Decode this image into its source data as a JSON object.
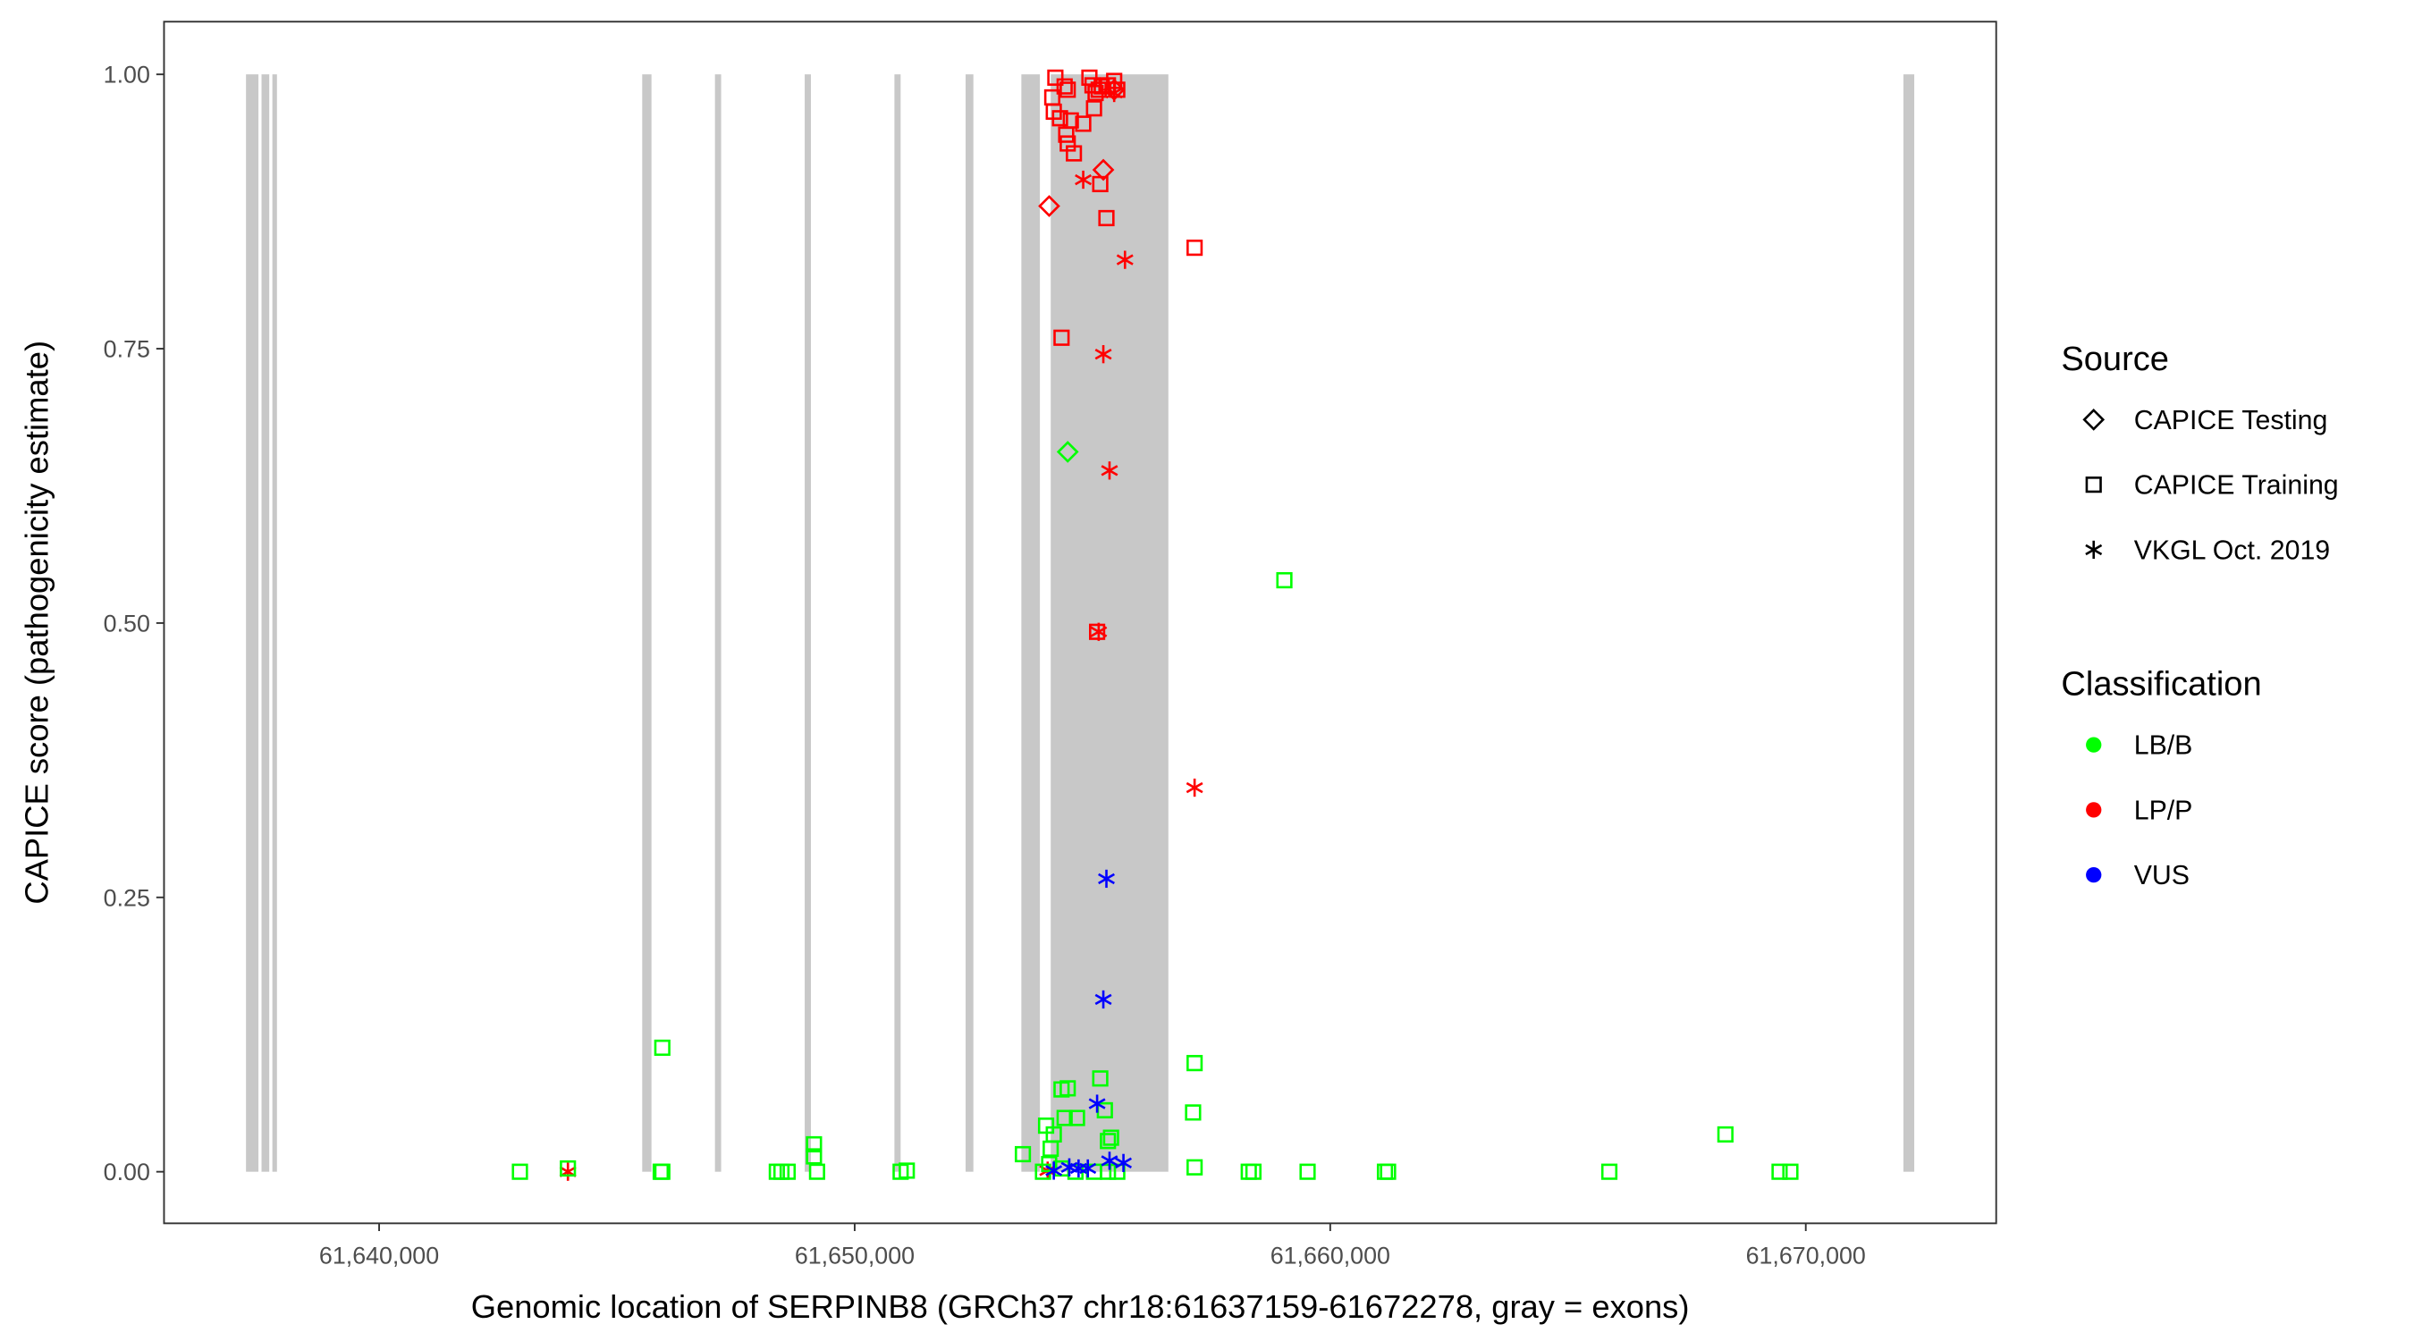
{
  "chart_data": {
    "type": "scatter",
    "xlabel": "Genomic location of SERPINB8 (GRCh37 chr18:61637159-61672278, gray = exons)",
    "ylabel": "CAPICE score (pathogenicity estimate)",
    "xlim": [
      61635477,
      61674004
    ],
    "ylim": [
      -0.047,
      1.048
    ],
    "x_ticks": [
      61640000,
      61650000,
      61660000,
      61670000
    ],
    "x_tick_labels": [
      "61,640,000",
      "61,650,000",
      "61,660,000",
      "61,670,000"
    ],
    "y_ticks": [
      0,
      0.25,
      0.5,
      0.75,
      1.0
    ],
    "y_tick_labels": [
      "0.00",
      "0.25",
      "0.50",
      "0.75",
      "1.00"
    ],
    "grid": false,
    "exon_color": "#C8C8C8",
    "exons": [
      [
        61637201,
        61637462
      ],
      [
        61637527,
        61637690
      ],
      [
        61637755,
        61637852
      ],
      [
        61645532,
        61645727
      ],
      [
        61647062,
        61647192
      ],
      [
        61648949,
        61649079
      ],
      [
        61650836,
        61650966
      ],
      [
        61652333,
        61652496
      ],
      [
        61653505,
        61653895
      ],
      [
        61654123,
        61656596
      ],
      [
        61672053,
        61672281
      ]
    ],
    "legend": {
      "placement": "right",
      "source_title": "Source",
      "source_items": [
        {
          "label": "CAPICE Testing",
          "shape": "diamond"
        },
        {
          "label": "CAPICE Training",
          "shape": "square"
        },
        {
          "label": "VKGL Oct. 2019",
          "shape": "asterisk"
        }
      ],
      "class_title": "Classification",
      "class_items": [
        {
          "label": "LB/B",
          "color": "#00FF00"
        },
        {
          "label": "LP/P",
          "color": "#FF0000"
        },
        {
          "label": "VUS",
          "color": "#0000FF"
        }
      ]
    },
    "series": [
      {
        "source": "CAPICE Training",
        "classification": "LP/P",
        "x": [
          61654220,
          61654155,
          61654187,
          61654318,
          61654415,
          61654480,
          61654545,
          61654448,
          61654480,
          61654610,
          61654806,
          61654936,
          61655001,
          61655066,
          61655131,
          61655196,
          61655326,
          61655457,
          61655522,
          61655033,
          61655164,
          61655294,
          61657148,
          61654350,
          61655098
        ],
        "y": [
          0.997,
          0.979,
          0.966,
          0.96,
          0.989,
          0.986,
          0.958,
          0.945,
          0.937,
          0.928,
          0.955,
          0.997,
          0.99,
          0.983,
          0.986,
          0.989,
          0.99,
          0.994,
          0.986,
          0.969,
          0.9,
          0.869,
          0.842,
          0.76,
          0.492
        ]
      },
      {
        "source": "CAPICE Testing",
        "classification": "LP/P",
        "x": [
          61654090,
          61655229,
          61655457
        ],
        "y": [
          0.88,
          0.913,
          0.986
        ]
      },
      {
        "source": "VKGL Oct. 2019",
        "classification": "LP/P",
        "x": [
          61654806,
          61655684,
          61655229,
          61655359,
          61655131,
          61657148,
          61643970,
          61654058,
          61655457
        ],
        "y": [
          0.904,
          0.831,
          0.745,
          0.639,
          0.492,
          0.35,
          0.0,
          0.001,
          0.983
        ]
      },
      {
        "source": "CAPICE Testing",
        "classification": "LB/B",
        "x": [
          61654480
        ],
        "y": [
          0.656
        ]
      },
      {
        "source": "CAPICE Training",
        "classification": "LB/B",
        "x": [
          61642961,
          61643970,
          61645955,
          61645922,
          61645955,
          61648363,
          61648460,
          61648591,
          61649144,
          61649144,
          61649209,
          61650966,
          61651096,
          61653537,
          61654025,
          61654122,
          61654187,
          61654350,
          61654480,
          61654675,
          61654415,
          61655164,
          61655261,
          61655326,
          61655391,
          61657148,
          61657116,
          61657148,
          61658287,
          61658385,
          61659036,
          61659524,
          61661151,
          61661216,
          61665869,
          61668310,
          61669449,
          61669676,
          61653960,
          61654090,
          61654350,
          61654643,
          61655033,
          61655326,
          61655522
        ],
        "y": [
          0.0,
          0.003,
          0.113,
          0.0,
          0.0,
          0.0,
          0.0,
          0.0,
          0.025,
          0.014,
          0.0,
          0.0,
          0.001,
          0.016,
          0.042,
          0.021,
          0.034,
          0.075,
          0.076,
          0.049,
          0.049,
          0.085,
          0.056,
          0.028,
          0.031,
          0.099,
          0.054,
          0.004,
          0.0,
          0.0,
          0.539,
          0.0,
          0.0,
          0.0,
          0.0,
          0.034,
          0.0,
          0.0,
          0.0,
          0.007,
          0.003,
          0.0,
          0.0,
          0.0,
          0.0
        ]
      },
      {
        "source": "VKGL Oct. 2019",
        "classification": "VUS",
        "x": [
          61655294,
          61655229,
          61655098,
          61654513,
          61654708,
          61654903,
          61655359,
          61655652,
          61654187
        ],
        "y": [
          0.267,
          0.157,
          0.062,
          0.004,
          0.003,
          0.003,
          0.01,
          0.008,
          0.001
        ]
      }
    ]
  }
}
